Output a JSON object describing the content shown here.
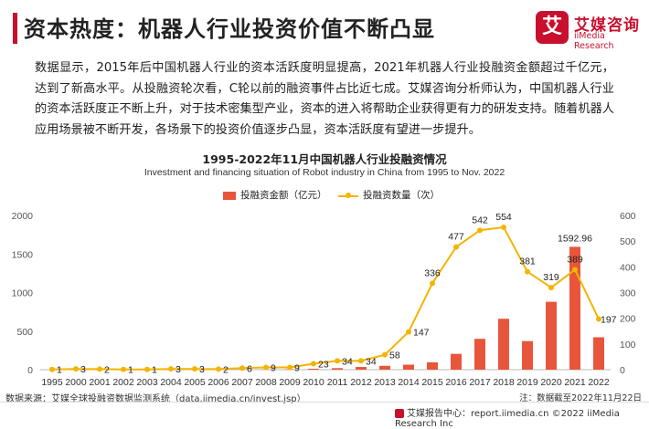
{
  "header": {
    "title": "资本热度：机器人行业投资价值不断凸显",
    "logo_mark": "艾",
    "logo_cn": "艾媒咨询",
    "logo_en": "iiMedia Research"
  },
  "paragraph": "数据显示，2015年后中国机器人行业的资本活跃度明显提高，2021年机器人行业投融资金额超过千亿元，达到了新高水平。从投融资轮次看，C轮以前的融资事件占比近七成。艾媒咨询分析师认为，中国机器人行业的资本活跃度正不断上升，对于技术密集型产业，资本的进入将帮助企业获得更有力的研发支持。随着机器人应用场景被不断开发，各场景下的投资价值逐步凸显，资本活跃度有望进一步提升。",
  "chart_data": {
    "type": "bar",
    "title": "1995-2022年11月中国机器人行业投融资情况",
    "subtitle": "Investment and financing situation of Robot industry in China from 1995 to Nov. 2022",
    "categories": [
      "1995",
      "2000",
      "2001",
      "2002",
      "2003",
      "2004",
      "2005",
      "2006",
      "2007",
      "2008",
      "2009",
      "2010",
      "2011",
      "2012",
      "2013",
      "2014",
      "2015",
      "2016",
      "2017",
      "2018",
      "2019",
      "2020",
      "2021",
      "2022"
    ],
    "series": [
      {
        "name": "投融资金额（亿元）",
        "type": "bar",
        "axis": "left",
        "color": "#e8553a",
        "values": [
          0,
          0,
          0,
          0,
          0,
          0,
          0,
          0,
          0,
          2,
          5,
          12,
          20,
          35,
          50,
          65,
          95,
          205,
          400,
          660,
          370,
          880,
          1592.96,
          420
        ],
        "labels": {
          "22": "1592.96"
        }
      },
      {
        "name": "投融资数量（次）",
        "type": "line",
        "axis": "right",
        "color": "#f4b400",
        "values": [
          1,
          3,
          2,
          1,
          1,
          3,
          3,
          2,
          6,
          9,
          9,
          23,
          34,
          34,
          58,
          147,
          336,
          477,
          542,
          554,
          381,
          319,
          389,
          197
        ],
        "labels": [
          "1",
          "3",
          "2",
          "1",
          "1",
          "3",
          "3",
          "2",
          "6",
          "9",
          "9",
          "23",
          "34",
          "34",
          "58",
          "147",
          "336",
          "477",
          "542",
          "554",
          "381",
          "319",
          "389",
          "197"
        ]
      }
    ],
    "y_left": {
      "min": 0,
      "max": 2000,
      "ticks": [
        0,
        500,
        1000,
        1500,
        2000
      ]
    },
    "y_right": {
      "min": 0,
      "max": 600,
      "ticks": [
        0,
        100,
        200,
        300,
        400,
        500,
        600
      ]
    },
    "grid": false,
    "legend_position": "top-center"
  },
  "footer": {
    "source": "数据来源：艾媒全球投融资数据监测系统（data.iimedia.cn/invest.jsp）",
    "note": "注：数据截至2022年11月22日",
    "center": "艾媒报告中心：report.iimedia.cn   ©2022  iiMedia Research  Inc"
  }
}
